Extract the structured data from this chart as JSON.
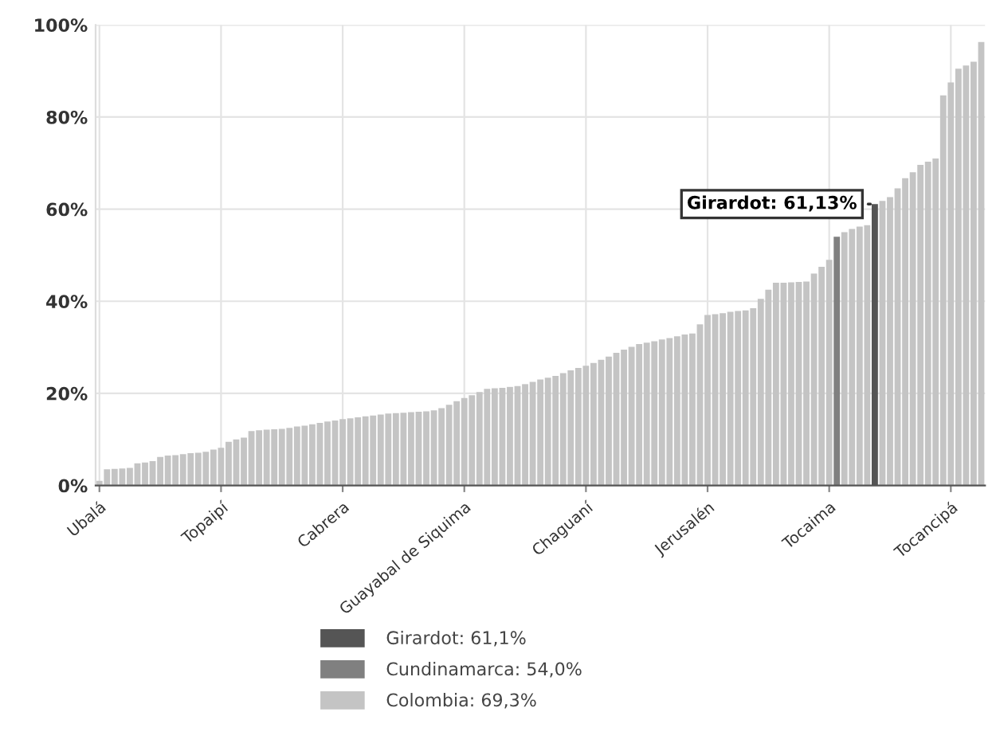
{
  "chart_data": {
    "type": "bar",
    "categories": [
      "Ubalá",
      null,
      null,
      null,
      null,
      null,
      null,
      null,
      null,
      null,
      null,
      null,
      null,
      null,
      null,
      null,
      "Topaipí",
      null,
      null,
      null,
      null,
      null,
      null,
      null,
      null,
      null,
      null,
      null,
      null,
      null,
      null,
      null,
      "Cabrera",
      null,
      null,
      null,
      null,
      null,
      null,
      null,
      null,
      null,
      null,
      null,
      null,
      null,
      null,
      null,
      "Guayabal de Siquima",
      null,
      null,
      null,
      null,
      null,
      null,
      null,
      null,
      null,
      null,
      null,
      null,
      null,
      null,
      null,
      "Chaguaní",
      null,
      null,
      null,
      null,
      null,
      null,
      null,
      null,
      null,
      null,
      null,
      null,
      null,
      null,
      null,
      "Jerusalén",
      null,
      null,
      null,
      null,
      null,
      null,
      null,
      null,
      null,
      null,
      null,
      null,
      null,
      null,
      null,
      "Tocaima",
      null,
      null,
      null,
      null,
      null,
      null,
      null,
      null,
      null,
      null,
      null,
      null,
      null,
      null,
      null,
      "Tocancipá",
      null,
      null,
      null,
      null
    ],
    "series": [
      {
        "name": "Girardot: 61,1%",
        "color": "#555555",
        "values": [
          null,
          null,
          null,
          null,
          null,
          null,
          null,
          null,
          null,
          null,
          null,
          null,
          null,
          null,
          null,
          null,
          null,
          null,
          null,
          null,
          null,
          null,
          null,
          null,
          null,
          null,
          null,
          null,
          null,
          null,
          null,
          null,
          null,
          null,
          null,
          null,
          null,
          null,
          null,
          null,
          null,
          null,
          null,
          null,
          null,
          null,
          null,
          null,
          null,
          null,
          null,
          null,
          null,
          null,
          null,
          null,
          null,
          null,
          null,
          null,
          null,
          null,
          null,
          null,
          null,
          null,
          null,
          null,
          null,
          null,
          null,
          null,
          null,
          null,
          null,
          null,
          null,
          null,
          null,
          null,
          null,
          null,
          null,
          null,
          null,
          null,
          null,
          null,
          null,
          null,
          null,
          null,
          null,
          null,
          null,
          null,
          null,
          null,
          null,
          null,
          null,
          null,
          61.1,
          null,
          null,
          null,
          null,
          null,
          null,
          null,
          null,
          null,
          null,
          null,
          null,
          null,
          null
        ]
      },
      {
        "name": "Cundinamarca: 54,0%",
        "color": "#808080",
        "values": [
          null,
          null,
          null,
          null,
          null,
          null,
          null,
          null,
          null,
          null,
          null,
          null,
          null,
          null,
          null,
          null,
          null,
          null,
          null,
          null,
          null,
          null,
          null,
          null,
          null,
          null,
          null,
          null,
          null,
          null,
          null,
          null,
          null,
          null,
          null,
          null,
          null,
          null,
          null,
          null,
          null,
          null,
          null,
          null,
          null,
          null,
          null,
          null,
          null,
          null,
          null,
          null,
          null,
          null,
          null,
          null,
          null,
          null,
          null,
          null,
          null,
          null,
          null,
          null,
          null,
          null,
          null,
          null,
          null,
          null,
          null,
          null,
          null,
          null,
          null,
          null,
          null,
          null,
          null,
          null,
          null,
          null,
          null,
          null,
          null,
          null,
          null,
          null,
          null,
          null,
          null,
          null,
          null,
          null,
          null,
          null,
          null,
          54.0,
          null,
          null,
          null,
          null,
          null,
          null,
          null,
          null,
          null,
          null,
          null,
          null,
          null,
          null,
          null,
          null,
          null,
          null,
          null
        ]
      },
      {
        "name": "Colombia: 69,3%",
        "color": "#c4c4c4",
        "values": [
          1.0,
          3.5,
          3.6,
          3.7,
          3.8,
          4.8,
          5.0,
          5.3,
          6.2,
          6.5,
          6.6,
          6.8,
          7.0,
          7.1,
          7.3,
          7.8,
          8.2,
          9.5,
          10.0,
          10.4,
          11.8,
          12.0,
          12.1,
          12.2,
          12.3,
          12.5,
          12.8,
          13.0,
          13.3,
          13.6,
          13.9,
          14.1,
          14.4,
          14.6,
          14.8,
          15.0,
          15.2,
          15.4,
          15.6,
          15.7,
          15.8,
          15.9,
          16.0,
          16.1,
          16.3,
          16.8,
          17.5,
          18.3,
          19.0,
          19.6,
          20.3,
          21.0,
          21.1,
          21.2,
          21.4,
          21.6,
          22.0,
          22.5,
          23.0,
          23.4,
          23.8,
          24.4,
          25.0,
          25.5,
          26.0,
          26.6,
          27.3,
          28.0,
          28.8,
          29.5,
          30.1,
          30.7,
          31.0,
          31.3,
          31.7,
          32.0,
          32.4,
          32.8,
          33.0,
          35.0,
          37.0,
          37.2,
          37.4,
          37.7,
          37.9,
          38.0,
          38.5,
          40.5,
          42.5,
          44.0,
          44.0,
          44.1,
          44.2,
          44.3,
          46.0,
          47.5,
          49.0,
          null,
          55.0,
          55.7,
          56.2,
          56.5,
          null,
          61.8,
          62.6,
          64.5,
          66.7,
          68.0,
          69.6,
          70.3,
          71.0,
          84.7,
          87.5,
          90.5,
          91.2,
          92.0,
          96.3
        ]
      }
    ],
    "ylim": [
      0,
      100
    ],
    "yticks": [
      {
        "value": 0,
        "label": "0%"
      },
      {
        "value": 20,
        "label": "20%"
      },
      {
        "value": 40,
        "label": "40%"
      },
      {
        "value": 60,
        "label": "60%"
      },
      {
        "value": 80,
        "label": "80%"
      },
      {
        "value": 100,
        "label": "100%"
      }
    ],
    "grid": true,
    "legend": "bottom",
    "annotations": [
      "Girardot: 61,13%"
    ]
  }
}
